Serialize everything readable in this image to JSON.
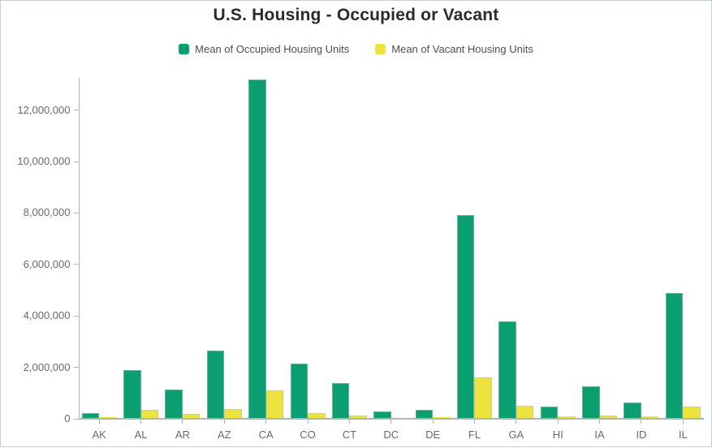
{
  "frame": {
    "border_color": "#c6cdd3"
  },
  "chart_data": {
    "type": "bar",
    "title": "U.S. Housing - Occupied or Vacant",
    "categories": [
      "AK",
      "AL",
      "AR",
      "AZ",
      "CA",
      "CO",
      "CT",
      "DC",
      "DE",
      "FL",
      "GA",
      "HI",
      "IA",
      "ID",
      "IL"
    ],
    "series": [
      {
        "name": "Mean of Occupied Housing Units",
        "color": "#0b9e70",
        "values": [
          235000,
          1880000,
          1150000,
          2640000,
          13180000,
          2130000,
          1380000,
          275000,
          350000,
          7930000,
          3800000,
          470000,
          1275000,
          640000,
          4900000
        ]
      },
      {
        "name": "Mean of Vacant Housing Units",
        "color": "#ece33f",
        "values": [
          65000,
          360000,
          180000,
          380000,
          1100000,
          220000,
          125000,
          30000,
          65000,
          1600000,
          490000,
          80000,
          130000,
          80000,
          480000
        ]
      }
    ],
    "xlabel": "",
    "ylabel": "",
    "ylim": [
      0,
      13250000
    ],
    "yticks": [
      0,
      2000000,
      4000000,
      6000000,
      8000000,
      10000000,
      12000000
    ],
    "grid": false,
    "legend_position": "top",
    "colors": {
      "title": "#2b2b2b",
      "labels": "#6a6a6a",
      "legend_text": "#4f4f4f",
      "axis": "#b3b3b3",
      "bar_border": "rgba(186,193,189,0.55)"
    }
  }
}
